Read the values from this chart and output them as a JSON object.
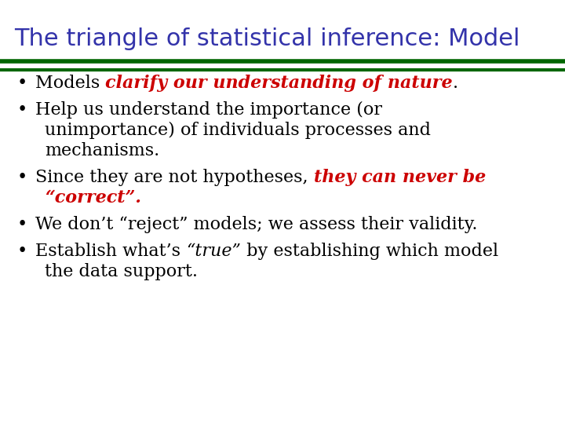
{
  "title": "The triangle of statistical inference: Model",
  "title_color": "#3333AA",
  "background_color": "#FFFFFF",
  "sep_line1_color": "#006600",
  "sep_line2_color": "#FFFFFF",
  "sep_line3_color": "#006600",
  "title_fontsize": 22,
  "body_fontsize": 16,
  "bullet_color": "#000000",
  "bullet_points": [
    {
      "lines": [
        [
          {
            "text": "Models ",
            "color": "#000000",
            "bold": false,
            "italic": false
          },
          {
            "text": "clarify our understanding of nature",
            "color": "#CC0000",
            "bold": true,
            "italic": true
          },
          {
            "text": ".",
            "color": "#000000",
            "bold": false,
            "italic": false
          }
        ]
      ]
    },
    {
      "lines": [
        [
          {
            "text": "Help us understand the importance (or",
            "color": "#000000",
            "bold": false,
            "italic": false
          }
        ],
        [
          {
            "text": "unimportance) of individuals processes and",
            "color": "#000000",
            "bold": false,
            "italic": false
          }
        ],
        [
          {
            "text": "mechanisms.",
            "color": "#000000",
            "bold": false,
            "italic": false
          }
        ]
      ]
    },
    {
      "lines": [
        [
          {
            "text": "Since they are not hypotheses, ",
            "color": "#000000",
            "bold": false,
            "italic": false
          },
          {
            "text": "they can never be",
            "color": "#CC0000",
            "bold": true,
            "italic": true
          }
        ],
        [
          {
            "text": "“correct”.",
            "color": "#CC0000",
            "bold": true,
            "italic": true
          }
        ]
      ]
    },
    {
      "lines": [
        [
          {
            "text": "We don’t “reject” models; we assess their validity.",
            "color": "#000000",
            "bold": false,
            "italic": false
          }
        ]
      ]
    },
    {
      "lines": [
        [
          {
            "text": "Establish what’s ",
            "color": "#000000",
            "bold": false,
            "italic": false
          },
          {
            "text": "“true”",
            "color": "#000000",
            "bold": false,
            "italic": true
          },
          {
            "text": " by establishing which model",
            "color": "#000000",
            "bold": false,
            "italic": false
          }
        ],
        [
          {
            "text": "the data support.",
            "color": "#000000",
            "bold": false,
            "italic": false
          }
        ]
      ]
    }
  ]
}
